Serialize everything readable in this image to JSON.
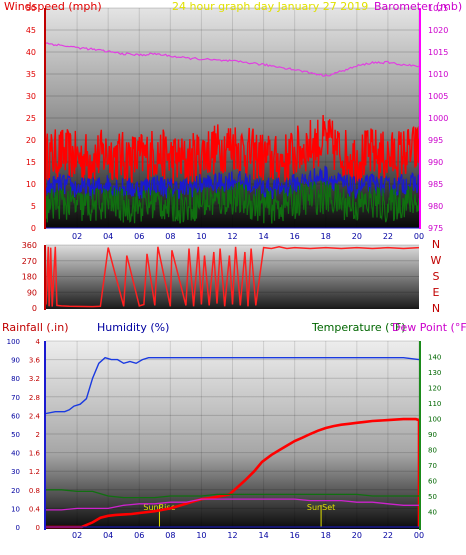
{
  "chart_data": [
    {
      "type": "line",
      "title": "24 hour graph day   January 27 2019",
      "left_label": "Windspeed (mph)",
      "right_label": "Barometer (mb)",
      "x_ticks": [
        "02",
        "04",
        "06",
        "08",
        "10",
        "12",
        "14",
        "16",
        "18",
        "20",
        "22",
        "00"
      ],
      "x_range_hours": [
        0,
        24
      ],
      "ylim_left": [
        0,
        50
      ],
      "y_ticks_left": [
        0,
        5,
        10,
        15,
        20,
        25,
        30,
        35,
        40,
        45,
        50
      ],
      "ylim_right": [
        975,
        1025
      ],
      "y_ticks_right": [
        975,
        980,
        985,
        990,
        995,
        1000,
        1005,
        1010,
        1015,
        1020,
        1025
      ],
      "grid": true,
      "colors": {
        "barometer": "#e040e0",
        "gust": "#ff0000",
        "average": "#1a1ad0",
        "wind": "#107010",
        "title": "#e0e000",
        "left_axis": "#e00000",
        "right_axis": "#cc00cc"
      },
      "series": [
        {
          "key": "barometer",
          "axis": "right",
          "x": [
            0,
            1,
            2,
            3,
            4,
            5,
            6,
            7,
            8,
            9,
            10,
            11,
            12,
            13,
            14,
            15,
            16,
            17,
            18,
            19,
            20,
            21,
            22,
            23,
            24
          ],
          "values": [
            1017,
            1016.5,
            1016,
            1015.6,
            1015.1,
            1014.6,
            1014.3,
            1014.6,
            1014.1,
            1013.6,
            1013.4,
            1013.1,
            1012.9,
            1012.6,
            1012.1,
            1011.6,
            1011,
            1010.3,
            1009.6,
            1010.6,
            1011.8,
            1012.6,
            1012.6,
            1012.1,
            1011.7
          ]
        },
        {
          "key": "gust",
          "axis": "left",
          "x": [
            0,
            1,
            2,
            3,
            4,
            5,
            6,
            7,
            8,
            9,
            10,
            11,
            12,
            13,
            14,
            15,
            16,
            17,
            18,
            19,
            20,
            21,
            22,
            23,
            24
          ],
          "values": [
            16,
            17,
            16,
            16,
            17,
            16,
            16,
            17,
            16,
            15,
            17,
            18,
            19,
            17,
            16,
            15,
            17,
            19,
            20,
            17,
            16,
            17,
            16,
            17,
            18
          ],
          "noise": 6
        },
        {
          "key": "average",
          "axis": "left",
          "x": [
            0,
            1,
            2,
            3,
            4,
            5,
            6,
            7,
            8,
            9,
            10,
            11,
            12,
            13,
            14,
            15,
            16,
            17,
            18,
            19,
            20,
            21,
            22,
            23,
            24
          ],
          "values": [
            9,
            10,
            9,
            9,
            10,
            9,
            9,
            10,
            9,
            9,
            10,
            10,
            11,
            10,
            9,
            9,
            10,
            11,
            12,
            10,
            9,
            10,
            9,
            10,
            10
          ],
          "noise": 2.5
        },
        {
          "key": "wind",
          "axis": "left",
          "x": [
            0,
            1,
            2,
            3,
            4,
            5,
            6,
            7,
            8,
            9,
            10,
            11,
            12,
            13,
            14,
            15,
            16,
            17,
            18,
            19,
            20,
            21,
            22,
            23,
            24
          ],
          "values": [
            5,
            6,
            5,
            5,
            6,
            5,
            5,
            6,
            5,
            5,
            6,
            6,
            7,
            6,
            5,
            5,
            6,
            7,
            7,
            6,
            5,
            6,
            5,
            6,
            6
          ],
          "noise": 4
        }
      ]
    },
    {
      "type": "line",
      "title": "",
      "y_ticks": [
        0,
        90,
        180,
        270,
        360
      ],
      "ylim": [
        0,
        360
      ],
      "x_range_hours": [
        0,
        24
      ],
      "compass_labels": [
        "N",
        "W",
        "S",
        "E",
        "N"
      ],
      "colors": {
        "direction": "#ff2020",
        "axis": "#c00000"
      },
      "series": [
        {
          "key": "direction",
          "x": [
            0,
            0.15,
            0.2,
            0.3,
            0.4,
            0.6,
            0.7,
            1,
            1.5,
            3,
            3.5,
            4,
            5,
            5.2,
            6,
            6.3,
            6.5,
            7,
            7.2,
            8,
            8.1,
            9,
            9.2,
            9.5,
            9.8,
            10,
            10.2,
            10.5,
            10.8,
            11,
            11.2,
            11.5,
            11.8,
            12,
            12.2,
            12.5,
            12.8,
            13,
            13.2,
            13.5,
            14,
            14.5,
            15,
            15.5,
            16,
            17,
            18,
            19,
            20,
            21,
            22,
            23,
            24
          ],
          "values": [
            20,
            350,
            10,
            345,
            8,
            350,
            15,
            12,
            10,
            8,
            10,
            345,
            10,
            300,
            12,
            20,
            310,
            15,
            350,
            10,
            330,
            15,
            340,
            10,
            350,
            20,
            300,
            15,
            320,
            25,
            340,
            10,
            300,
            20,
            350,
            15,
            320,
            10,
            340,
            15,
            345,
            340,
            350,
            340,
            345,
            340,
            345,
            340,
            345,
            340,
            345,
            340,
            345
          ]
        }
      ]
    },
    {
      "type": "line",
      "title": "",
      "left_label": "Rainfall (.in)",
      "middle_label": "Humidity (%)",
      "right_label": "Temperature (°F)",
      "right_label2": "Dew Point (°F)",
      "x_ticks": [
        "02",
        "04",
        "06",
        "08",
        "10",
        "12",
        "14",
        "16",
        "18",
        "20",
        "22",
        "00"
      ],
      "x_range_hours": [
        0,
        24
      ],
      "ylim_rain": [
        0,
        4
      ],
      "y_ticks_rain": [
        "0",
        "0.4",
        "0.8",
        "1.2",
        "1.6",
        "2",
        "2.4",
        "2.8",
        "3.2",
        "3.6",
        "4"
      ],
      "ylim_humidity": [
        0,
        100
      ],
      "y_ticks_humidity": [
        0,
        10,
        20,
        30,
        40,
        50,
        60,
        70,
        80,
        90,
        100
      ],
      "ylim_temp": [
        30,
        150
      ],
      "y_ticks_temp": [
        40,
        50,
        60,
        70,
        80,
        90,
        100,
        110,
        120,
        130,
        140
      ],
      "annotations": [
        {
          "text": "SunRise",
          "x_hour": 7.3
        },
        {
          "text": "SunSet",
          "x_hour": 17.7
        }
      ],
      "grid": true,
      "colors": {
        "humidity": "#1a3ae0",
        "rain": "#ff0000",
        "temperature": "#cc22cc",
        "dewpoint": "#107010",
        "sun": "#e0e000",
        "rain_axis": "#c00000",
        "humidity_label": "#0000a0",
        "temp_axis": "#006600",
        "dew_label": "#cc00cc"
      },
      "series": [
        {
          "key": "humidity",
          "axis": "humidity",
          "x": [
            0,
            0.6,
            1.2,
            1.5,
            1.8,
            2.2,
            2.6,
            3,
            3.4,
            3.8,
            4.2,
            4.6,
            5,
            5.4,
            5.8,
            6.2,
            6.6,
            7,
            8,
            9,
            10,
            11,
            12,
            13,
            14,
            15,
            16,
            17,
            18,
            19,
            20,
            21,
            22,
            23,
            24
          ],
          "values": [
            61,
            62,
            62,
            63,
            65,
            66,
            69,
            80,
            88,
            91,
            90,
            90,
            88,
            89,
            88,
            90,
            91,
            91,
            91,
            91,
            91,
            91,
            91,
            91,
            91,
            91,
            91,
            91,
            91,
            91,
            91,
            91,
            91,
            91,
            90
          ]
        },
        {
          "key": "rain",
          "axis": "rain",
          "x": [
            0,
            2.3,
            3,
            3.5,
            4,
            4.5,
            5.5,
            6,
            7,
            8,
            8.5,
            9,
            9.5,
            10,
            10.5,
            11,
            11.8,
            12.3,
            12.8,
            13.4,
            13.9,
            14.5,
            15,
            15.5,
            16,
            16.5,
            17,
            17.5,
            18,
            18.5,
            19,
            19.5,
            20,
            20.5,
            21,
            22,
            22.5,
            23,
            23.8,
            24
          ],
          "values": [
            0,
            0,
            0.1,
            0.2,
            0.24,
            0.26,
            0.28,
            0.3,
            0.34,
            0.4,
            0.45,
            0.5,
            0.55,
            0.6,
            0.62,
            0.65,
            0.7,
            0.85,
            1.0,
            1.2,
            1.4,
            1.55,
            1.65,
            1.75,
            1.85,
            1.92,
            2.0,
            2.07,
            2.13,
            2.17,
            2.2,
            2.22,
            2.24,
            2.26,
            2.28,
            2.3,
            2.31,
            2.32,
            2.32,
            2.3
          ]
        },
        {
          "key": "temperature",
          "axis": "temp",
          "x": [
            0,
            1,
            2,
            3,
            4,
            5,
            6,
            7,
            8,
            9,
            10,
            11,
            12,
            13,
            14,
            15,
            16,
            17,
            18,
            19,
            20,
            21,
            22,
            23,
            24
          ],
          "values": [
            41,
            41,
            42,
            42,
            42,
            44,
            45,
            45,
            46,
            46,
            48,
            48,
            48,
            48,
            48,
            48,
            48,
            47,
            47,
            47,
            46,
            46,
            45,
            44,
            44
          ]
        },
        {
          "key": "dewpoint",
          "axis": "temp",
          "x": [
            0,
            1,
            2,
            3,
            4,
            5,
            6,
            7,
            8,
            9,
            10,
            11,
            12,
            13,
            14,
            15,
            16,
            17,
            18,
            19,
            20,
            21,
            22,
            23,
            24
          ],
          "values": [
            54,
            54,
            53,
            53,
            50,
            49,
            49,
            49,
            50,
            50,
            50,
            51,
            51,
            51,
            51,
            51,
            51,
            51,
            51,
            51,
            51,
            50,
            50,
            50,
            50
          ]
        }
      ]
    }
  ]
}
